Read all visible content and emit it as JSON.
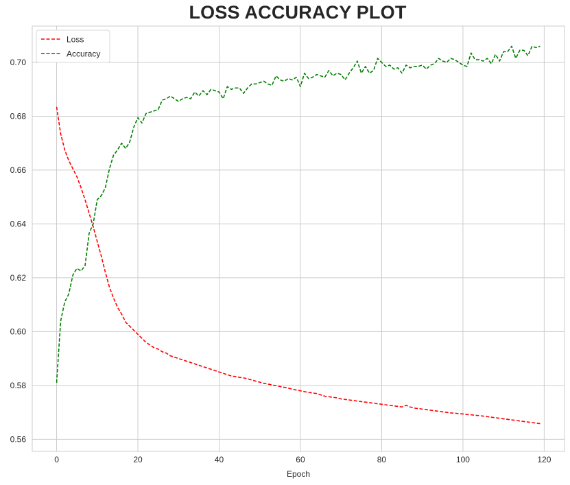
{
  "chart_data": {
    "type": "line",
    "title": "LOSS ACCURACY PLOT",
    "xlabel": "Epoch",
    "ylabel": "",
    "xlim": [
      -6,
      125
    ],
    "ylim": [
      0.5555,
      0.7135
    ],
    "xticks": [
      0,
      20,
      40,
      60,
      80,
      100,
      120
    ],
    "yticks": [
      0.56,
      0.58,
      0.6,
      0.62,
      0.64,
      0.66,
      0.68,
      0.7
    ],
    "ytick_labels": [
      "0.56",
      "0.58",
      "0.60",
      "0.62",
      "0.64",
      "0.66",
      "0.68",
      "0.70"
    ],
    "grid": true,
    "legend_position": "top-left",
    "x": [
      0,
      1,
      2,
      3,
      4,
      5,
      6,
      7,
      8,
      9,
      10,
      11,
      12,
      13,
      14,
      15,
      16,
      17,
      18,
      19,
      20,
      21,
      22,
      23,
      24,
      25,
      26,
      27,
      28,
      29,
      30,
      31,
      32,
      33,
      34,
      35,
      36,
      37,
      38,
      39,
      40,
      41,
      42,
      43,
      44,
      45,
      46,
      47,
      48,
      49,
      50,
      51,
      52,
      53,
      54,
      55,
      56,
      57,
      58,
      59,
      60,
      61,
      62,
      63,
      64,
      65,
      66,
      67,
      68,
      69,
      70,
      71,
      72,
      73,
      74,
      75,
      76,
      77,
      78,
      79,
      80,
      81,
      82,
      83,
      84,
      85,
      86,
      87,
      88,
      89,
      90,
      91,
      92,
      93,
      94,
      95,
      96,
      97,
      98,
      99,
      100,
      101,
      102,
      103,
      104,
      105,
      106,
      107,
      108,
      109,
      110,
      111,
      112,
      113,
      114,
      115,
      116,
      117,
      118,
      119
    ],
    "series": [
      {
        "name": "Loss",
        "color": "#ff0000",
        "values": [
          0.6835,
          0.6735,
          0.6675,
          0.6635,
          0.6605,
          0.6575,
          0.6535,
          0.649,
          0.644,
          0.639,
          0.6335,
          0.628,
          0.622,
          0.6165,
          0.6125,
          0.609,
          0.6065,
          0.6035,
          0.602,
          0.6005,
          0.599,
          0.5975,
          0.596,
          0.595,
          0.594,
          0.5935,
          0.5925,
          0.592,
          0.591,
          0.5905,
          0.59,
          0.5895,
          0.589,
          0.5885,
          0.588,
          0.5875,
          0.587,
          0.5865,
          0.586,
          0.5855,
          0.585,
          0.5845,
          0.584,
          0.5835,
          0.5833,
          0.583,
          0.5828,
          0.5825,
          0.582,
          0.5816,
          0.5812,
          0.5808,
          0.5805,
          0.5802,
          0.5799,
          0.5796,
          0.5793,
          0.579,
          0.5786,
          0.5783,
          0.578,
          0.5777,
          0.5774,
          0.5772,
          0.577,
          0.5765,
          0.576,
          0.5758,
          0.5756,
          0.5754,
          0.575,
          0.5748,
          0.5746,
          0.5744,
          0.5742,
          0.574,
          0.5738,
          0.5736,
          0.5734,
          0.5732,
          0.573,
          0.5728,
          0.5726,
          0.5724,
          0.5722,
          0.572,
          0.5726,
          0.572,
          0.5716,
          0.5714,
          0.5712,
          0.571,
          0.5708,
          0.5706,
          0.5704,
          0.5702,
          0.57,
          0.5698,
          0.5697,
          0.5695,
          0.5694,
          0.5692,
          0.5691,
          0.5689,
          0.5688,
          0.5686,
          0.5684,
          0.5682,
          0.568,
          0.5678,
          0.5676,
          0.5674,
          0.5672,
          0.567,
          0.5668,
          0.5666,
          0.5664,
          0.5662,
          0.566,
          0.5658
        ]
      },
      {
        "name": "Accuracy",
        "color": "#008000",
        "values": [
          0.581,
          0.604,
          0.611,
          0.614,
          0.621,
          0.6235,
          0.6225,
          0.6245,
          0.6365,
          0.64,
          0.649,
          0.6505,
          0.6535,
          0.6605,
          0.6655,
          0.6675,
          0.67,
          0.668,
          0.6705,
          0.676,
          0.6795,
          0.6775,
          0.681,
          0.6815,
          0.682,
          0.6825,
          0.686,
          0.6865,
          0.6875,
          0.6865,
          0.6855,
          0.6865,
          0.687,
          0.6865,
          0.689,
          0.6875,
          0.6895,
          0.688,
          0.69,
          0.6895,
          0.689,
          0.6865,
          0.691,
          0.69,
          0.6905,
          0.6905,
          0.6885,
          0.6905,
          0.692,
          0.692,
          0.6925,
          0.693,
          0.692,
          0.6915,
          0.695,
          0.6935,
          0.693,
          0.694,
          0.6935,
          0.6945,
          0.691,
          0.696,
          0.694,
          0.6945,
          0.6955,
          0.695,
          0.6945,
          0.697,
          0.695,
          0.696,
          0.6955,
          0.6935,
          0.696,
          0.698,
          0.7005,
          0.696,
          0.6985,
          0.696,
          0.697,
          0.7015,
          0.7,
          0.6985,
          0.699,
          0.6975,
          0.698,
          0.696,
          0.699,
          0.698,
          0.6985,
          0.6985,
          0.699,
          0.6975,
          0.699,
          0.6995,
          0.7015,
          0.7005,
          0.7,
          0.7015,
          0.701,
          0.7,
          0.699,
          0.6985,
          0.7035,
          0.701,
          0.701,
          0.7005,
          0.7015,
          0.6995,
          0.703,
          0.7005,
          0.704,
          0.704,
          0.706,
          0.7015,
          0.7045,
          0.7045,
          0.7025,
          0.706,
          0.7055,
          0.706
        ]
      }
    ]
  }
}
